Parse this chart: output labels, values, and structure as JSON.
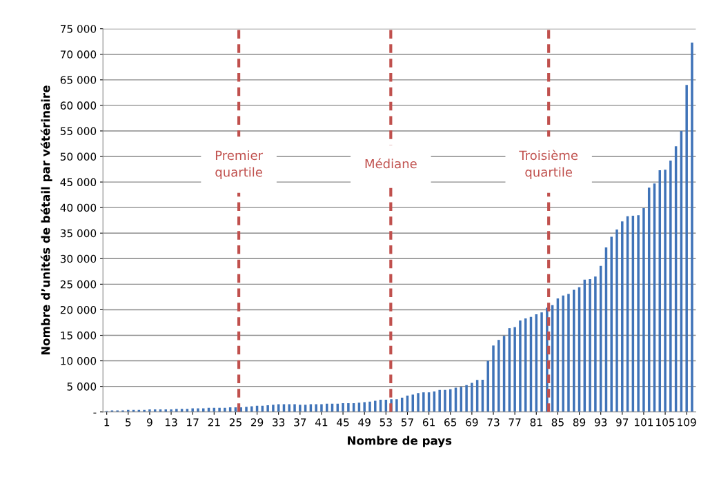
{
  "chart_data": {
    "type": "bar",
    "xlabel": "Nombre de pays",
    "ylabel": "Nombre d’unités de bétail par vétérinaire",
    "x": [
      1,
      2,
      3,
      4,
      5,
      6,
      7,
      8,
      9,
      10,
      11,
      12,
      13,
      14,
      15,
      16,
      17,
      18,
      19,
      20,
      21,
      22,
      23,
      24,
      25,
      26,
      27,
      28,
      29,
      30,
      31,
      32,
      33,
      34,
      35,
      36,
      37,
      38,
      39,
      40,
      41,
      42,
      43,
      44,
      45,
      46,
      47,
      48,
      49,
      50,
      51,
      52,
      53,
      54,
      55,
      56,
      57,
      58,
      59,
      60,
      61,
      62,
      63,
      64,
      65,
      66,
      67,
      68,
      69,
      70,
      71,
      72,
      73,
      74,
      75,
      76,
      77,
      78,
      79,
      80,
      81,
      82,
      83,
      84,
      85,
      86,
      87,
      88,
      89,
      90,
      91,
      92,
      93,
      94,
      95,
      96,
      97,
      98,
      99,
      100,
      101,
      102,
      103,
      104,
      105,
      106,
      107,
      108,
      109,
      110
    ],
    "values": [
      200,
      300,
      300,
      300,
      400,
      400,
      400,
      400,
      500,
      500,
      500,
      500,
      500,
      600,
      600,
      600,
      700,
      700,
      700,
      800,
      800,
      800,
      800,
      900,
      900,
      900,
      1000,
      1100,
      1200,
      1200,
      1300,
      1400,
      1500,
      1500,
      1500,
      1500,
      1400,
      1400,
      1500,
      1500,
      1500,
      1600,
      1600,
      1600,
      1700,
      1700,
      1700,
      1800,
      1900,
      2000,
      2200,
      2400,
      2400,
      2500,
      2500,
      2800,
      3200,
      3400,
      3700,
      3850,
      3850,
      4000,
      4300,
      4300,
      4450,
      4750,
      4900,
      5250,
      5700,
      6250,
      6300,
      10000,
      13000,
      14100,
      14900,
      16400,
      16600,
      17900,
      18300,
      18600,
      19100,
      19500,
      20400,
      20900,
      22200,
      22800,
      23100,
      23900,
      24400,
      25900,
      26000,
      26500,
      28600,
      32200,
      34300,
      35700,
      37300,
      38300,
      38400,
      38500,
      39900,
      43900,
      44700,
      47300,
      47400,
      49200,
      52000,
      55000,
      64000,
      72300
    ],
    "color": "#3f73b8",
    "xlim": [
      0.3,
      110.7
    ],
    "xticks": [
      1,
      5,
      9,
      13,
      17,
      21,
      25,
      29,
      33,
      37,
      41,
      45,
      49,
      53,
      57,
      61,
      65,
      69,
      73,
      77,
      81,
      85,
      89,
      93,
      97,
      101,
      105,
      109
    ],
    "ylim": [
      0,
      75000
    ],
    "yticks": [
      {
        "value": 0,
        "label": "-"
      },
      {
        "value": 5000,
        "label": "5 000"
      },
      {
        "value": 10000,
        "label": "10 000"
      },
      {
        "value": 15000,
        "label": "15 000"
      },
      {
        "value": 20000,
        "label": "20 000"
      },
      {
        "value": 25000,
        "label": "25 000"
      },
      {
        "value": 30000,
        "label": "30 000"
      },
      {
        "value": 35000,
        "label": "35 000"
      },
      {
        "value": 40000,
        "label": "40 000"
      },
      {
        "value": 45000,
        "label": "45 000"
      },
      {
        "value": 50000,
        "label": "50 000"
      },
      {
        "value": 55000,
        "label": "55 000"
      },
      {
        "value": 60000,
        "label": "60 000"
      },
      {
        "value": 65000,
        "label": "65 000"
      },
      {
        "value": 70000,
        "label": "70 000"
      },
      {
        "value": 75000,
        "label": "75 000"
      }
    ],
    "grid": "y",
    "ref_lines": [
      {
        "axis": "x",
        "value": 25.6,
        "label": "Premier\nquartile",
        "color": "#c0504d",
        "line_style": "dashed"
      },
      {
        "axis": "x",
        "value": 53.9,
        "label": "Médiane",
        "color": "#c0504d",
        "line_style": "dashed"
      },
      {
        "axis": "x",
        "value": 83.3,
        "label": "Troisième\nquartile",
        "color": "#c0504d",
        "line_style": "dashed"
      }
    ]
  }
}
